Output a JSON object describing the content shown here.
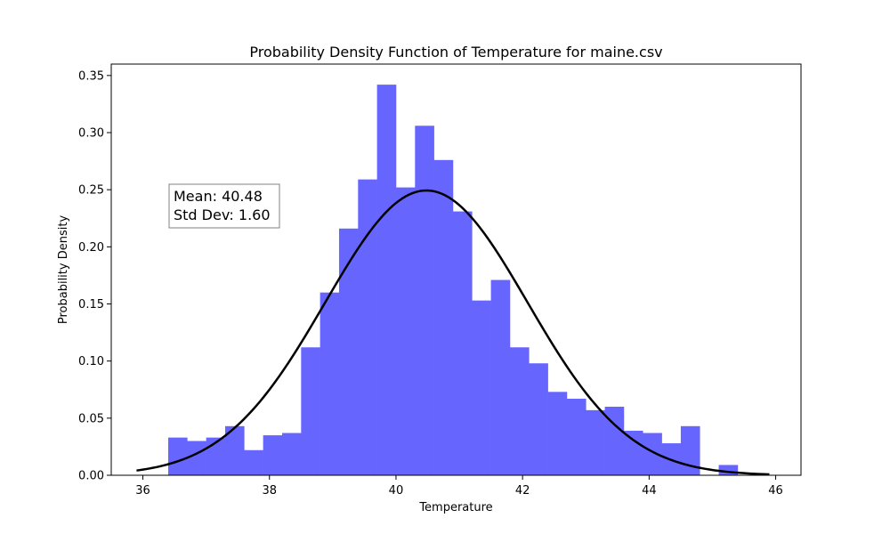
{
  "chart_data": {
    "type": "bar",
    "title": "Probability Density Function of Temperature for maine.csv",
    "xlabel": "Temperature",
    "ylabel": "Probability Density",
    "xlim": [
      35.5,
      46.4
    ],
    "ylim": [
      0,
      0.36
    ],
    "xticks": [
      36,
      38,
      40,
      42,
      44,
      46
    ],
    "xtick_labels": [
      "36",
      "38",
      "40",
      "42",
      "44",
      "46"
    ],
    "yticks": [
      0.0,
      0.05,
      0.1,
      0.15,
      0.2,
      0.25,
      0.3,
      0.35
    ],
    "ytick_labels": [
      "0.00",
      "0.05",
      "0.10",
      "0.15",
      "0.20",
      "0.25",
      "0.30",
      "0.35"
    ],
    "grid": false,
    "histogram": {
      "bin_start": 36.4,
      "bin_width": 0.3,
      "bar_color": "#6666ff",
      "values": [
        0.033,
        0.03,
        0.033,
        0.043,
        0.022,
        0.035,
        0.037,
        0.112,
        0.16,
        0.216,
        0.259,
        0.342,
        0.252,
        0.306,
        0.276,
        0.231,
        0.153,
        0.171,
        0.112,
        0.098,
        0.073,
        0.067,
        0.057,
        0.06,
        0.039,
        0.037,
        0.028,
        0.043,
        0.0,
        0.009
      ]
    },
    "normal_curve": {
      "mean": 40.48,
      "std": 1.6,
      "x_range": [
        35.9,
        45.9
      ],
      "color": "#000000"
    },
    "stats_box": {
      "mean_text": "Mean: 40.48",
      "std_text": "Std Dev: 1.60"
    }
  }
}
